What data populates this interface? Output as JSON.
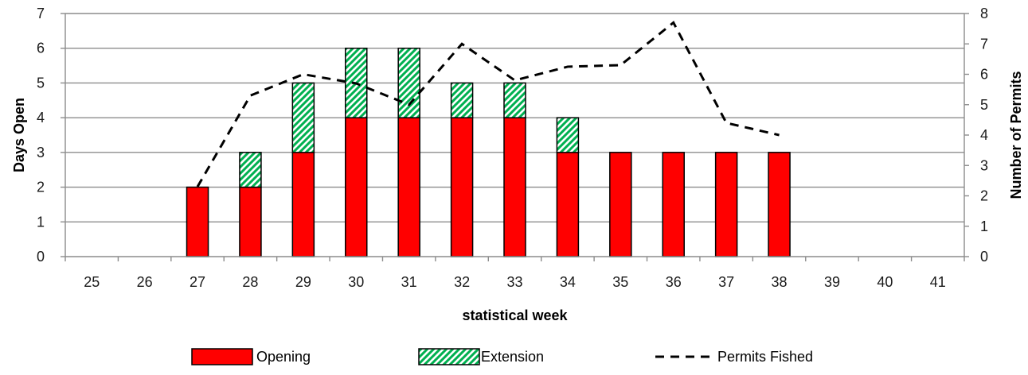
{
  "chart_data": {
    "type": "bar",
    "subtype": "stacked-bar-with-line-secondary-axis",
    "xlabel": "statistical week",
    "ylabel_left": "Days Open",
    "ylabel_right": "Number of Permits",
    "ylim_left": [
      0,
      7
    ],
    "ylim_right": [
      0,
      8
    ],
    "yticks_left": [
      0,
      1,
      2,
      3,
      4,
      5,
      6,
      7
    ],
    "yticks_right": [
      0,
      1,
      2,
      3,
      4,
      5,
      6,
      7,
      8
    ],
    "grid": "horizontal",
    "legend_position": "bottom",
    "categories": [
      25,
      26,
      27,
      28,
      29,
      30,
      31,
      32,
      33,
      34,
      35,
      36,
      37,
      38,
      39,
      40,
      41
    ],
    "series": [
      {
        "name": "Opening",
        "kind": "bar",
        "axis": "left",
        "color": "#ff0000",
        "values": [
          0,
          0,
          2,
          2,
          3,
          4,
          4,
          4,
          4,
          3,
          3,
          3,
          3,
          3,
          0,
          0,
          0
        ]
      },
      {
        "name": "Extension",
        "kind": "bar",
        "axis": "left",
        "color": "#00b050",
        "pattern": "diagonal-hatch",
        "values": [
          0,
          0,
          0,
          1,
          2,
          2,
          2,
          1,
          1,
          1,
          0,
          0,
          0,
          0,
          0,
          0,
          0
        ]
      },
      {
        "name": "Permits Fished",
        "kind": "line",
        "axis": "right",
        "color": "#000000",
        "style": "dashed",
        "values": [
          null,
          null,
          2.3,
          5.3,
          6.0,
          5.7,
          5.0,
          7.0,
          5.8,
          6.25,
          6.3,
          7.7,
          4.4,
          4.0,
          null,
          null,
          null
        ]
      }
    ]
  }
}
